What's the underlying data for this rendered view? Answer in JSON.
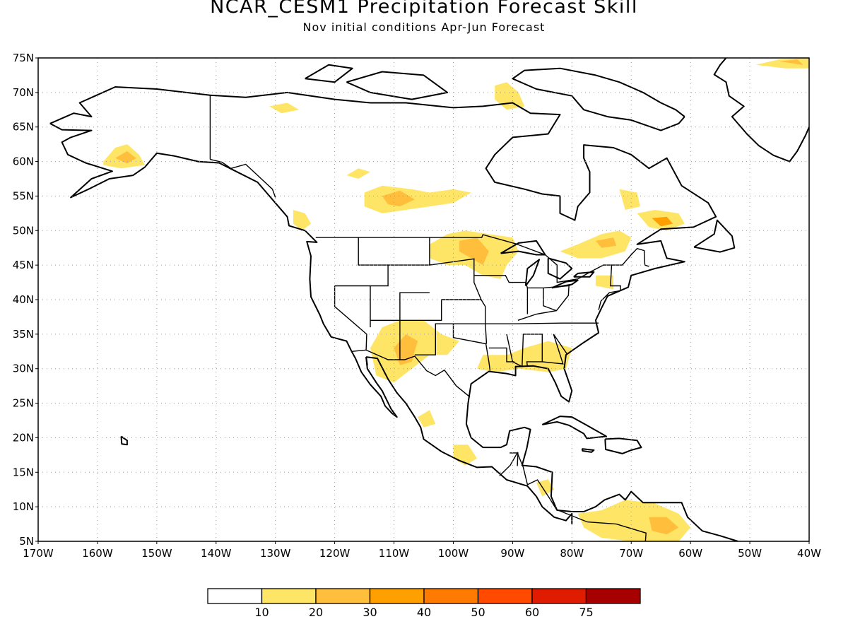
{
  "header": {
    "title": "NCAR_CESM1 Precipitation Forecast Skill",
    "subtitle": "Nov initial conditions  Apr-Jun Forecast"
  },
  "map": {
    "projection": "lat-lon",
    "lon_range": [
      -170,
      -40
    ],
    "lat_range": [
      5,
      75
    ],
    "grid": "dotted",
    "lat_ticks": [
      "5N",
      "10N",
      "15N",
      "20N",
      "25N",
      "30N",
      "35N",
      "40N",
      "45N",
      "50N",
      "55N",
      "60N",
      "65N",
      "70N",
      "75N"
    ],
    "lon_ticks": [
      "170W",
      "160W",
      "150W",
      "140W",
      "130W",
      "120W",
      "110W",
      "100W",
      "90W",
      "80W",
      "70W",
      "60W",
      "50W",
      "40W"
    ],
    "skill_regions": [
      {
        "name": "alaska",
        "level": 1,
        "pts": [
          [
            -159,
            60
          ],
          [
            -157,
            62
          ],
          [
            -155,
            62.5
          ],
          [
            -153,
            61
          ],
          [
            -152,
            59.5
          ],
          [
            -156,
            59
          ],
          [
            -159,
            59.5
          ]
        ]
      },
      {
        "name": "alaska-core",
        "level": 2,
        "pts": [
          [
            -157,
            60.5
          ],
          [
            -155,
            61.5
          ],
          [
            -153.5,
            60.5
          ],
          [
            -155,
            59.7
          ]
        ]
      },
      {
        "name": "bc-coast",
        "level": 1,
        "pts": [
          [
            -127,
            53
          ],
          [
            -125,
            52.5
          ],
          [
            -124,
            51
          ],
          [
            -125.5,
            50
          ],
          [
            -127,
            51
          ]
        ]
      },
      {
        "name": "central-canada-a",
        "level": 1,
        "pts": [
          [
            -118,
            58
          ],
          [
            -116,
            59
          ],
          [
            -114,
            58.5
          ],
          [
            -116,
            57.5
          ]
        ]
      },
      {
        "name": "central-canada-b",
        "level": 1,
        "pts": [
          [
            -115,
            55.5
          ],
          [
            -112,
            56.5
          ],
          [
            -107,
            56
          ],
          [
            -104,
            55.5
          ],
          [
            -100,
            56
          ],
          [
            -97,
            55.5
          ],
          [
            -100,
            54
          ],
          [
            -104,
            53.5
          ],
          [
            -108,
            53
          ],
          [
            -112,
            52.5
          ],
          [
            -115,
            53.5
          ]
        ]
      },
      {
        "name": "central-canada-b-core",
        "level": 2,
        "pts": [
          [
            -112,
            55
          ],
          [
            -109,
            55.8
          ],
          [
            -106.5,
            54.5
          ],
          [
            -109,
            53.5
          ],
          [
            -111,
            53.8
          ]
        ]
      },
      {
        "name": "nunavut-a",
        "level": 1,
        "pts": [
          [
            -131,
            68
          ],
          [
            -128,
            68.5
          ],
          [
            -126,
            67.5
          ],
          [
            -129,
            67
          ]
        ]
      },
      {
        "name": "nunavut-b",
        "level": 1,
        "pts": [
          [
            -93,
            71
          ],
          [
            -91,
            71.5
          ],
          [
            -89,
            70
          ],
          [
            -88,
            68
          ],
          [
            -91,
            67.5
          ],
          [
            -93,
            69
          ]
        ]
      },
      {
        "name": "greenland-tip",
        "level": 1,
        "pts": [
          [
            -49,
            74
          ],
          [
            -45,
            74.8
          ],
          [
            -40,
            75
          ],
          [
            -40,
            73.5
          ],
          [
            -44,
            73.5
          ]
        ]
      },
      {
        "name": "greenland-tip-core",
        "level": 2,
        "pts": [
          [
            -45,
            74.5
          ],
          [
            -42,
            74.8
          ],
          [
            -41,
            74
          ]
        ]
      },
      {
        "name": "upper-midwest",
        "level": 1,
        "pts": [
          [
            -104,
            48
          ],
          [
            -101,
            49.5
          ],
          [
            -98,
            50
          ],
          [
            -94,
            49.5
          ],
          [
            -90,
            49
          ],
          [
            -89,
            47
          ],
          [
            -91,
            45
          ],
          [
            -92,
            43
          ],
          [
            -95,
            43.5
          ],
          [
            -98,
            45
          ],
          [
            -101,
            45
          ],
          [
            -104,
            46
          ]
        ]
      },
      {
        "name": "upper-midwest-core",
        "level": 2,
        "pts": [
          [
            -99,
            48.5
          ],
          [
            -96,
            49
          ],
          [
            -94,
            47
          ],
          [
            -95,
            45
          ],
          [
            -97,
            46
          ],
          [
            -99,
            47
          ]
        ]
      },
      {
        "name": "quebec",
        "level": 1,
        "pts": [
          [
            -82,
            47
          ],
          [
            -79,
            48
          ],
          [
            -75,
            49.5
          ],
          [
            -72,
            50
          ],
          [
            -70,
            49
          ],
          [
            -71,
            47
          ],
          [
            -75,
            46
          ],
          [
            -79,
            46
          ]
        ]
      },
      {
        "name": "quebec-core",
        "level": 2,
        "pts": [
          [
            -76,
            48.5
          ],
          [
            -73,
            49
          ],
          [
            -72.5,
            47.8
          ],
          [
            -75,
            47.5
          ]
        ]
      },
      {
        "name": "labrador",
        "level": 1,
        "pts": [
          [
            -69,
            52.5
          ],
          [
            -66,
            53
          ],
          [
            -62,
            52.5
          ],
          [
            -61,
            51
          ],
          [
            -64,
            50
          ],
          [
            -67,
            50.5
          ]
        ]
      },
      {
        "name": "labrador-core",
        "level": 3,
        "pts": [
          [
            -66.5,
            51.8
          ],
          [
            -64,
            52
          ],
          [
            -63,
            51
          ],
          [
            -65,
            50.6
          ]
        ]
      },
      {
        "name": "hudson-east",
        "level": 1,
        "pts": [
          [
            -72,
            56
          ],
          [
            -69,
            55.5
          ],
          [
            -68.5,
            53.5
          ],
          [
            -71,
            53
          ]
        ]
      },
      {
        "name": "southwest",
        "level": 1,
        "pts": [
          [
            -114,
            33
          ],
          [
            -112,
            36
          ],
          [
            -109,
            37
          ],
          [
            -105,
            37
          ],
          [
            -102,
            35
          ],
          [
            -99,
            34
          ],
          [
            -101,
            32
          ],
          [
            -104,
            32
          ],
          [
            -107,
            30
          ],
          [
            -110,
            28
          ],
          [
            -113,
            29
          ]
        ]
      },
      {
        "name": "southwest-core",
        "level": 2,
        "pts": [
          [
            -110,
            33
          ],
          [
            -108,
            35
          ],
          [
            -106,
            34
          ],
          [
            -107,
            31
          ],
          [
            -109,
            30.5
          ]
        ]
      },
      {
        "name": "gulf-coast",
        "level": 1,
        "pts": [
          [
            -95,
            32
          ],
          [
            -91,
            32
          ],
          [
            -88,
            33
          ],
          [
            -84,
            34
          ],
          [
            -80,
            33
          ],
          [
            -81,
            30
          ],
          [
            -84,
            29.5
          ],
          [
            -89,
            30
          ],
          [
            -93,
            29.5
          ],
          [
            -96,
            30
          ]
        ]
      },
      {
        "name": "mexico-south",
        "level": 1,
        "pts": [
          [
            -100,
            19
          ],
          [
            -97.5,
            19
          ],
          [
            -96,
            17
          ],
          [
            -98,
            16
          ],
          [
            -100,
            17
          ]
        ]
      },
      {
        "name": "mexico-west",
        "level": 1,
        "pts": [
          [
            -106,
            23
          ],
          [
            -104,
            24
          ],
          [
            -103,
            22
          ],
          [
            -105,
            21.5
          ]
        ]
      },
      {
        "name": "central-america",
        "level": 1,
        "pts": [
          [
            -86,
            13.5
          ],
          [
            -84,
            14
          ],
          [
            -83,
            12.5
          ],
          [
            -85,
            11.5
          ]
        ]
      },
      {
        "name": "south-america",
        "level": 1,
        "pts": [
          [
            -79,
            9
          ],
          [
            -75,
            9.5
          ],
          [
            -71,
            11
          ],
          [
            -66,
            10.5
          ],
          [
            -62,
            9
          ],
          [
            -60,
            7
          ],
          [
            -62,
            5
          ],
          [
            -70,
            5
          ],
          [
            -75,
            5.5
          ],
          [
            -78,
            7
          ]
        ]
      },
      {
        "name": "south-america-core",
        "level": 2,
        "pts": [
          [
            -67,
            8.5
          ],
          [
            -64,
            8.5
          ],
          [
            -62,
            7
          ],
          [
            -64,
            6
          ],
          [
            -66.5,
            6.5
          ]
        ]
      },
      {
        "name": "northeast-us",
        "level": 1,
        "pts": [
          [
            -76,
            43.5
          ],
          [
            -73,
            43.5
          ],
          [
            -73,
            41.5
          ],
          [
            -76,
            42
          ]
        ]
      }
    ]
  },
  "colorbar": {
    "colors": [
      "#ffffff",
      "#ffe566",
      "#ffbe3c",
      "#ffa000",
      "#ff7a00",
      "#ff4a00",
      "#e01c00",
      "#a60000"
    ],
    "labels": [
      "10",
      "20",
      "30",
      "40",
      "50",
      "60",
      "75"
    ]
  }
}
